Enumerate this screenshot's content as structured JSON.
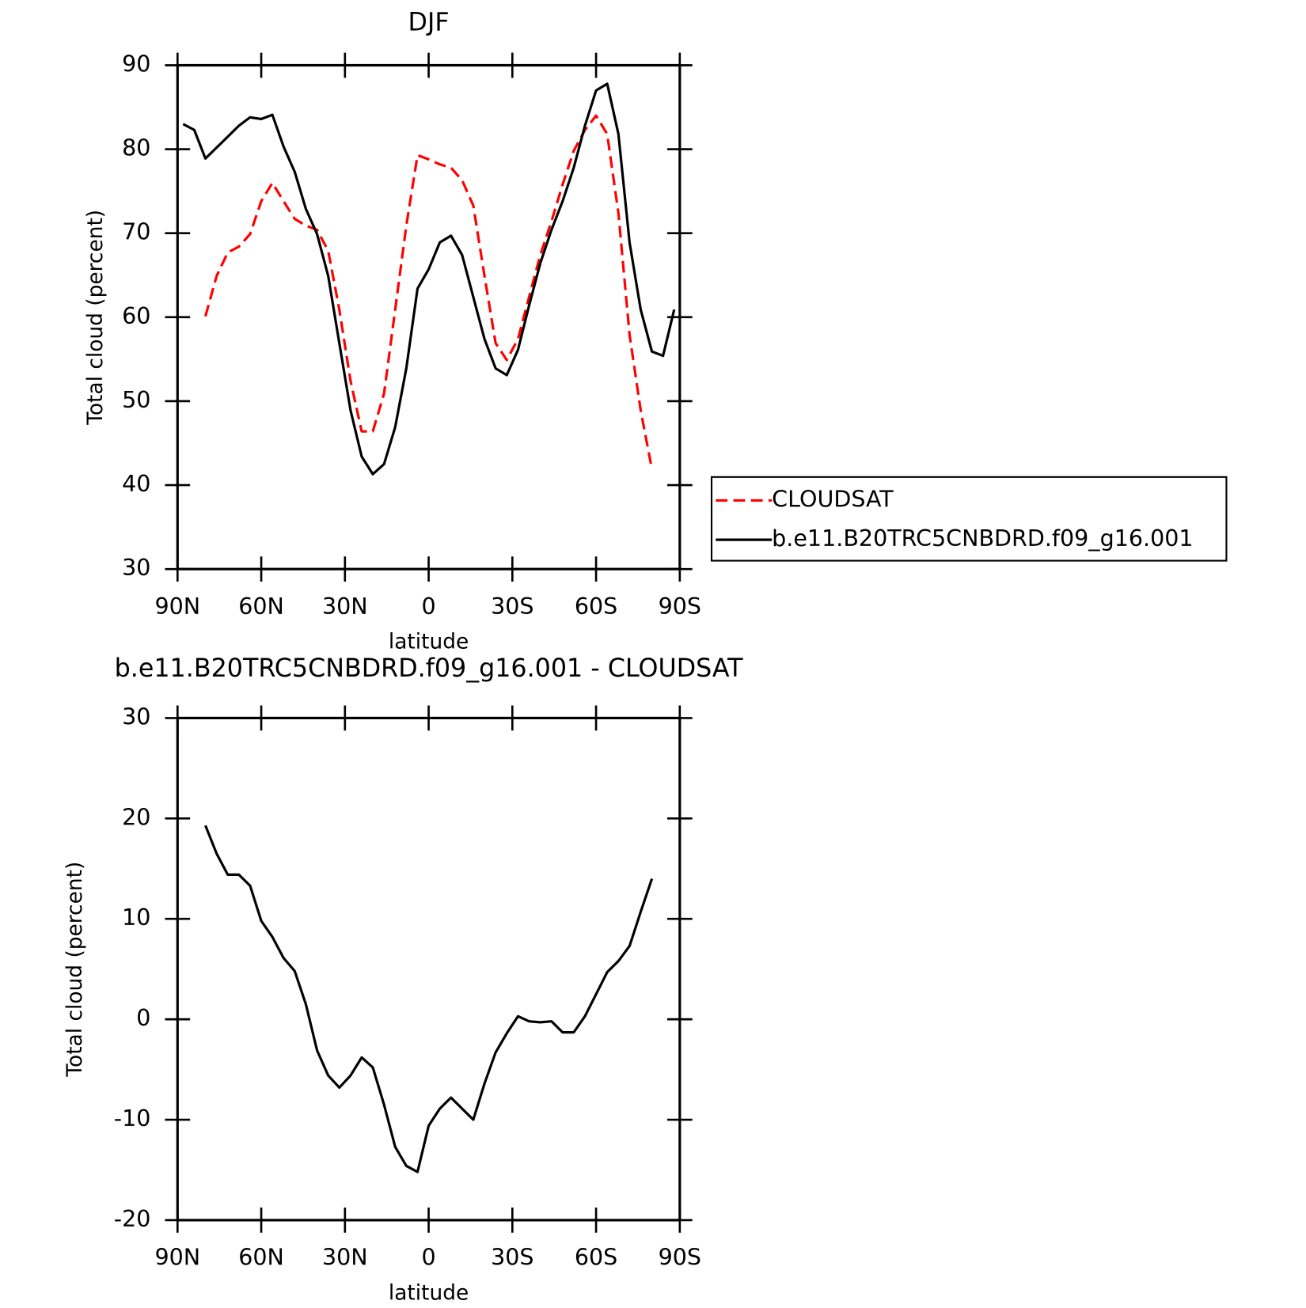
{
  "chart_data": [
    {
      "type": "line",
      "title": "DJF",
      "xlabel": "latitude",
      "ylabel": "Total cloud (percent)",
      "x": [
        88,
        84,
        80,
        76,
        72,
        68,
        64,
        60,
        56,
        52,
        48,
        44,
        40,
        36,
        32,
        28,
        24,
        20,
        16,
        12,
        8,
        4,
        0,
        -4,
        -8,
        -12,
        -16,
        -20,
        -24,
        -28,
        -32,
        -36,
        -40,
        -44,
        -48,
        -52,
        -56,
        -60,
        -64,
        -68,
        -72,
        -76,
        -80,
        -84,
        -88
      ],
      "series": [
        {
          "name": "CLOUDSAT",
          "color": "#ff0000",
          "dashed": true,
          "values": [
            null,
            null,
            60.1,
            64.9,
            67.7,
            68.4,
            69.9,
            73.8,
            76.0,
            73.8,
            71.7,
            70.9,
            70.4,
            67.9,
            60.9,
            52.4,
            46.4,
            46.4,
            50.9,
            60.9,
            70.9,
            79.3,
            78.8,
            78.2,
            77.8,
            76.3,
            73.3,
            64.9,
            56.9,
            54.9,
            57.4,
            62.4,
            67.4,
            71.4,
            75.8,
            79.8,
            82.3,
            84.0,
            81.8,
            72.4,
            57.9,
            48.9,
            41.9,
            null,
            null
          ]
        },
        {
          "name": "b.e11.B20TRC5CNBDRD.f09_g16.001",
          "color": "#000000",
          "dashed": false,
          "values": [
            83.0,
            82.3,
            78.9,
            80.2,
            81.5,
            82.8,
            83.8,
            83.6,
            84.1,
            80.3,
            77.3,
            72.9,
            69.9,
            64.9,
            56.9,
            48.9,
            43.4,
            41.3,
            42.5,
            46.9,
            53.9,
            63.4,
            65.7,
            68.9,
            69.7,
            67.4,
            62.4,
            57.4,
            53.9,
            53.1,
            56.1,
            61.4,
            66.4,
            70.4,
            73.8,
            77.8,
            82.8,
            87.0,
            87.8,
            81.8,
            68.9,
            60.9,
            55.9,
            55.4,
            60.9
          ]
        }
      ],
      "xlim": [
        90,
        -90
      ],
      "xticks": [
        {
          "value": 90,
          "label": "90N"
        },
        {
          "value": 60,
          "label": "60N"
        },
        {
          "value": 30,
          "label": "30N"
        },
        0,
        {
          "value": -30,
          "label": "30S"
        },
        {
          "value": -60,
          "label": "60S"
        },
        {
          "value": -90,
          "label": "90S"
        }
      ],
      "ylim": [
        30,
        90
      ],
      "yticks": [
        30,
        40,
        50,
        60,
        70,
        80,
        90
      ],
      "legend": "right"
    },
    {
      "type": "line",
      "title": "b.e11.B20TRC5CNBDRD.f09_g16.001 - CLOUDSAT",
      "xlabel": "latitude",
      "ylabel": "Total cloud (percent)",
      "x": [
        80,
        76,
        72,
        68,
        64,
        60,
        56,
        52,
        48,
        44,
        40,
        36,
        32,
        28,
        24,
        20,
        16,
        12,
        8,
        4,
        0,
        -4,
        -8,
        -12,
        -16,
        -20,
        -24,
        -28,
        -32,
        -36,
        -40,
        -44,
        -48,
        -52,
        -56,
        -60,
        -64,
        -68,
        -72,
        -76,
        -80
      ],
      "series": [
        {
          "color": "#000000",
          "dashed": false,
          "values": [
            19.3,
            16.5,
            14.4,
            14.4,
            13.3,
            9.8,
            8.2,
            6.1,
            4.8,
            1.5,
            -3.1,
            -5.6,
            -6.8,
            -5.6,
            -3.8,
            -4.8,
            -8.5,
            -12.7,
            -14.6,
            -15.2,
            -10.6,
            -8.9,
            -7.8,
            -8.9,
            -10.0,
            -6.4,
            -3.3,
            -1.4,
            0.3,
            -0.2,
            -0.3,
            -0.2,
            -1.3,
            -1.3,
            0.3,
            2.5,
            4.7,
            5.8,
            7.3,
            10.7,
            14.0
          ]
        }
      ],
      "xlim": [
        90,
        -90
      ],
      "xticks": [
        {
          "value": 90,
          "label": "90N"
        },
        {
          "value": 60,
          "label": "60N"
        },
        {
          "value": 30,
          "label": "30N"
        },
        0,
        {
          "value": -30,
          "label": "30S"
        },
        {
          "value": -60,
          "label": "60S"
        },
        {
          "value": -90,
          "label": "90S"
        }
      ],
      "ylim": [
        -20,
        30
      ],
      "yticks": [
        -20,
        -10,
        0,
        10,
        20,
        30
      ]
    }
  ]
}
